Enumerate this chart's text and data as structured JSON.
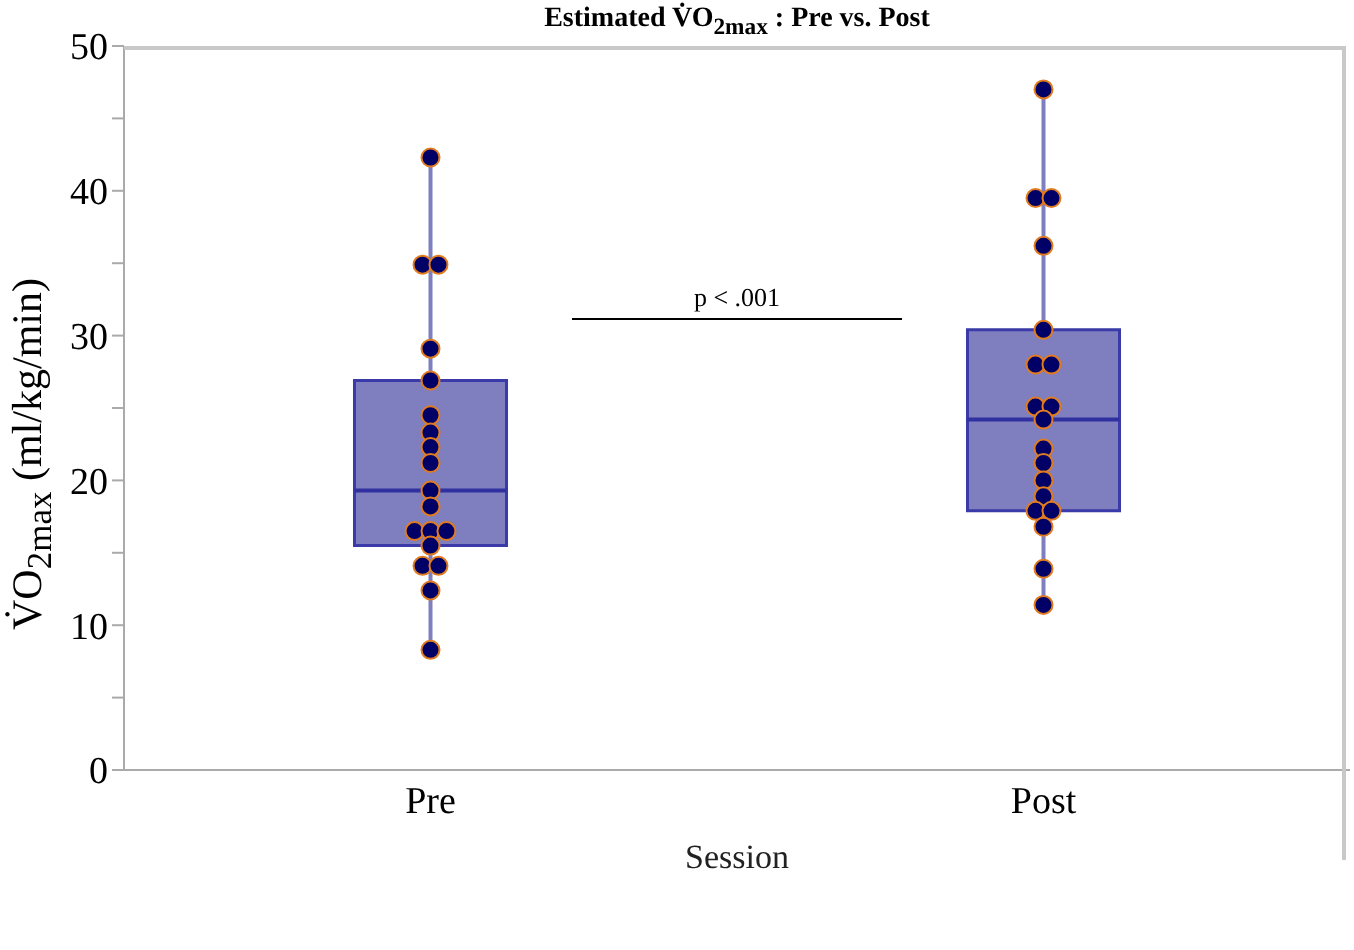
{
  "chart_data": {
    "type": "box",
    "title": "Estimated V̇O$_{2max}$ : Pre vs. Post",
    "xlabel": "Session",
    "ylabel": "V̇O$_{2max}$ (ml/kg/min)",
    "categories": [
      "Pre",
      "Post"
    ],
    "series": [
      {
        "type": "box",
        "color": "#7f7fbf",
        "boxes": [
          {
            "low": 8.3,
            "q1": 15.5,
            "median": 19.3,
            "q3": 26.9,
            "high": 42.3
          },
          {
            "low": 11.4,
            "q1": 17.9,
            "median": 24.2,
            "q3": 30.4,
            "high": 47.0
          }
        ]
      },
      {
        "type": "scatter",
        "color": "#000066",
        "x": [
          "Pre",
          "Pre",
          "Pre",
          "Pre",
          "Pre",
          "Pre",
          "Pre",
          "Pre",
          "Pre",
          "Pre",
          "Pre",
          "Pre",
          "Pre",
          "Pre",
          "Pre",
          "Pre",
          "Pre",
          "Pre",
          "Pre",
          "Post",
          "Post",
          "Post",
          "Post",
          "Post",
          "Post",
          "Post",
          "Post",
          "Post",
          "Post",
          "Post",
          "Post",
          "Post",
          "Post",
          "Post",
          "Post",
          "Post",
          "Post",
          "Post"
        ],
        "values": [
          42.3,
          34.9,
          34.9,
          29.1,
          26.9,
          24.5,
          23.3,
          22.3,
          21.2,
          19.3,
          18.2,
          16.5,
          16.5,
          16.5,
          15.5,
          14.1,
          14.1,
          12.4,
          8.3,
          47.0,
          39.5,
          39.5,
          36.2,
          30.4,
          28.0,
          28.0,
          25.1,
          25.1,
          24.2,
          22.2,
          21.2,
          20.0,
          18.9,
          17.9,
          17.9,
          16.8,
          13.9,
          11.4
        ]
      }
    ],
    "ylim": [
      0,
      50
    ],
    "yticks": [
      0,
      {
        "value": 5,
        "label": null
      },
      10,
      {
        "value": 15,
        "label": null
      },
      20,
      {
        "value": 25,
        "label": null
      },
      30,
      {
        "value": 35,
        "label": null
      },
      40,
      {
        "value": 45,
        "label": null
      },
      50
    ],
    "annotations": [
      "p < .001"
    ],
    "grid": false,
    "marker": "circle"
  }
}
